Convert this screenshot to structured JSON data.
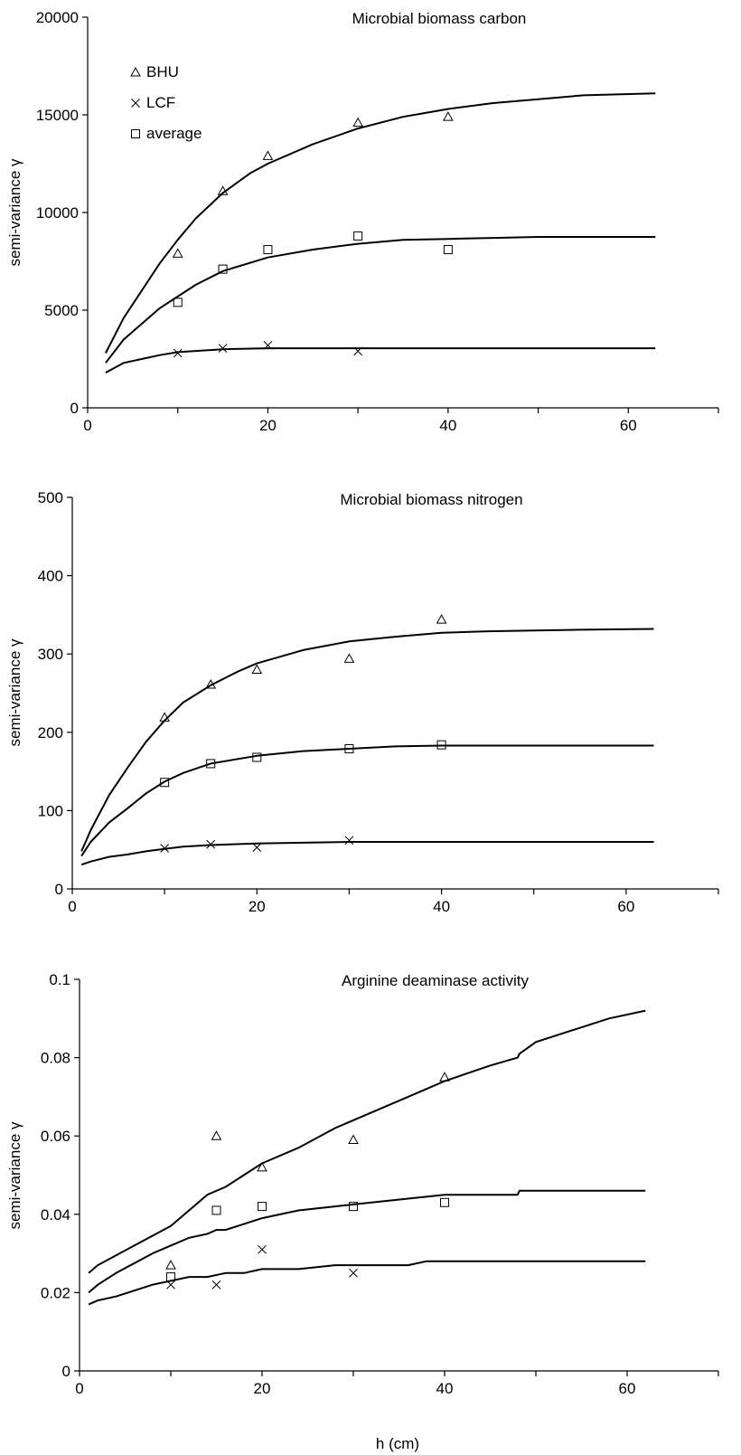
{
  "figure": {
    "xlabel": "h (cm)"
  },
  "chart_data": [
    {
      "type": "scatter",
      "title": "Microbial biomass carbon",
      "xlabel": "",
      "ylabel": "semi-variance γ",
      "xlim": [
        0,
        70
      ],
      "ylim": [
        0,
        20000
      ],
      "xticks": [
        "0",
        "20",
        "40",
        "60"
      ],
      "yticks": [
        "0",
        "5000",
        "10000",
        "15000",
        "20000"
      ],
      "legend": {
        "placement": "top-left",
        "entries": [
          "BHU",
          "LCF",
          "average"
        ]
      },
      "series": [
        {
          "name": "BHU",
          "marker": "triangle",
          "points": [
            [
              10,
              7900
            ],
            [
              15,
              11100
            ],
            [
              20,
              12900
            ],
            [
              30,
              14600
            ],
            [
              40,
              14900
            ]
          ],
          "fit": [
            [
              2,
              2800
            ],
            [
              4,
              4600
            ],
            [
              6,
              6000
            ],
            [
              8,
              7400
            ],
            [
              10,
              8600
            ],
            [
              12,
              9700
            ],
            [
              15,
              11000
            ],
            [
              18,
              12000
            ],
            [
              20,
              12500
            ],
            [
              25,
              13500
            ],
            [
              30,
              14300
            ],
            [
              35,
              14900
            ],
            [
              40,
              15300
            ],
            [
              45,
              15600
            ],
            [
              50,
              15800
            ],
            [
              55,
              16000
            ],
            [
              63,
              16100
            ]
          ]
        },
        {
          "name": "LCF",
          "marker": "cross",
          "points": [
            [
              10,
              2800
            ],
            [
              15,
              3050
            ],
            [
              20,
              3200
            ],
            [
              30,
              2900
            ]
          ],
          "fit": [
            [
              2,
              1800
            ],
            [
              4,
              2300
            ],
            [
              6,
              2500
            ],
            [
              8,
              2700
            ],
            [
              10,
              2850
            ],
            [
              15,
              3000
            ],
            [
              20,
              3050
            ],
            [
              24,
              3050
            ],
            [
              30,
              3050
            ],
            [
              40,
              3050
            ],
            [
              63,
              3050
            ]
          ]
        },
        {
          "name": "average",
          "marker": "square",
          "points": [
            [
              10,
              5400
            ],
            [
              15,
              7100
            ],
            [
              20,
              8100
            ],
            [
              30,
              8800
            ],
            [
              40,
              8100
            ]
          ],
          "fit": [
            [
              2,
              2300
            ],
            [
              4,
              3500
            ],
            [
              6,
              4300
            ],
            [
              8,
              5100
            ],
            [
              10,
              5700
            ],
            [
              12,
              6300
            ],
            [
              15,
              7000
            ],
            [
              20,
              7700
            ],
            [
              25,
              8100
            ],
            [
              30,
              8400
            ],
            [
              35,
              8600
            ],
            [
              40,
              8650
            ],
            [
              45,
              8700
            ],
            [
              50,
              8750
            ],
            [
              63,
              8750
            ]
          ]
        }
      ]
    },
    {
      "type": "scatter",
      "title": "Microbial biomass nitrogen",
      "xlabel": "",
      "ylabel": "semi-variance γ",
      "xlim": [
        0,
        70
      ],
      "ylim": [
        0,
        500
      ],
      "xticks": [
        "0",
        "20",
        "40",
        "60"
      ],
      "yticks": [
        "0",
        "100",
        "200",
        "300",
        "400",
        "500"
      ],
      "series": [
        {
          "name": "BHU",
          "marker": "triangle",
          "points": [
            [
              10,
              219
            ],
            [
              15,
              261
            ],
            [
              20,
              280
            ],
            [
              30,
              294
            ],
            [
              40,
              344
            ]
          ],
          "fit": [
            [
              1,
              48
            ],
            [
              2,
              75
            ],
            [
              4,
              120
            ],
            [
              6,
              155
            ],
            [
              8,
              188
            ],
            [
              10,
              215
            ],
            [
              12,
              238
            ],
            [
              15,
              260
            ],
            [
              18,
              278
            ],
            [
              20,
              288
            ],
            [
              25,
              305
            ],
            [
              30,
              316
            ],
            [
              35,
              322
            ],
            [
              40,
              327
            ],
            [
              45,
              329
            ],
            [
              50,
              330
            ],
            [
              55,
              331
            ],
            [
              63,
              332
            ]
          ]
        },
        {
          "name": "LCF",
          "marker": "cross",
          "points": [
            [
              10,
              52
            ],
            [
              15,
              57
            ],
            [
              20,
              53
            ],
            [
              30,
              62
            ]
          ],
          "fit": [
            [
              1,
              31
            ],
            [
              2,
              35
            ],
            [
              4,
              41
            ],
            [
              6,
              44
            ],
            [
              8,
              48
            ],
            [
              10,
              51
            ],
            [
              12,
              54
            ],
            [
              15,
              56
            ],
            [
              20,
              58
            ],
            [
              25,
              59
            ],
            [
              30,
              60
            ],
            [
              40,
              60
            ],
            [
              63,
              60
            ]
          ]
        },
        {
          "name": "average",
          "marker": "square",
          "points": [
            [
              10,
              136
            ],
            [
              15,
              160
            ],
            [
              20,
              168
            ],
            [
              30,
              179
            ],
            [
              40,
              184
            ]
          ],
          "fit": [
            [
              1,
              42
            ],
            [
              2,
              60
            ],
            [
              4,
              85
            ],
            [
              6,
              103
            ],
            [
              8,
              122
            ],
            [
              10,
              137
            ],
            [
              12,
              148
            ],
            [
              15,
              160
            ],
            [
              20,
              170
            ],
            [
              25,
              176
            ],
            [
              30,
              179
            ],
            [
              35,
              182
            ],
            [
              40,
              183
            ],
            [
              50,
              183
            ],
            [
              63,
              183
            ]
          ]
        }
      ]
    },
    {
      "type": "scatter",
      "title": "Arginine deaminase activity",
      "xlabel": "h (cm)",
      "ylabel": "semi-variance γ",
      "xlim": [
        0,
        70
      ],
      "ylim": [
        0,
        0.1
      ],
      "xticks": [
        "0",
        "20",
        "40",
        "60"
      ],
      "yticks": [
        "0",
        "0.02",
        "0.04",
        "0.06",
        "0.08",
        "0.1"
      ],
      "series": [
        {
          "name": "BHU",
          "marker": "triangle",
          "points": [
            [
              10,
              0.027
            ],
            [
              15,
              0.06
            ],
            [
              20,
              0.052
            ],
            [
              30,
              0.059
            ],
            [
              40,
              0.075
            ]
          ],
          "fit": [
            [
              1,
              0.025
            ],
            [
              2,
              0.027
            ],
            [
              6,
              0.032
            ],
            [
              10,
              0.037
            ],
            [
              14,
              0.045
            ],
            [
              16,
              0.047
            ],
            [
              18,
              0.05
            ],
            [
              20,
              0.053
            ],
            [
              24,
              0.057
            ],
            [
              28,
              0.062
            ],
            [
              32,
              0.066
            ],
            [
              36,
              0.07
            ],
            [
              40,
              0.074
            ],
            [
              45,
              0.078
            ],
            [
              48,
              0.08
            ],
            [
              48.2,
              0.081
            ],
            [
              50,
              0.084
            ],
            [
              58,
              0.09
            ],
            [
              62,
              0.092
            ]
          ]
        },
        {
          "name": "LCF",
          "marker": "cross",
          "points": [
            [
              10,
              0.022
            ],
            [
              15,
              0.022
            ],
            [
              20,
              0.031
            ],
            [
              30,
              0.025
            ]
          ],
          "fit": [
            [
              1,
              0.017
            ],
            [
              2,
              0.018
            ],
            [
              4,
              0.019
            ],
            [
              8,
              0.022
            ],
            [
              12,
              0.024
            ],
            [
              14,
              0.024
            ],
            [
              16,
              0.025
            ],
            [
              18,
              0.025
            ],
            [
              20,
              0.026
            ],
            [
              24,
              0.026
            ],
            [
              28,
              0.027
            ],
            [
              30,
              0.027
            ],
            [
              36,
              0.027
            ],
            [
              38,
              0.028
            ],
            [
              62,
              0.028
            ]
          ]
        },
        {
          "name": "average",
          "marker": "square",
          "points": [
            [
              10,
              0.024
            ],
            [
              15,
              0.041
            ],
            [
              20,
              0.042
            ],
            [
              30,
              0.042
            ],
            [
              40,
              0.043
            ]
          ],
          "fit": [
            [
              1,
              0.02
            ],
            [
              2,
              0.022
            ],
            [
              4,
              0.025
            ],
            [
              8,
              0.03
            ],
            [
              12,
              0.034
            ],
            [
              14,
              0.035
            ],
            [
              15,
              0.036
            ],
            [
              16,
              0.036
            ],
            [
              20,
              0.039
            ],
            [
              24,
              0.041
            ],
            [
              28,
              0.042
            ],
            [
              32,
              0.043
            ],
            [
              36,
              0.044
            ],
            [
              40,
              0.045
            ],
            [
              44,
              0.045
            ],
            [
              48,
              0.045
            ],
            [
              48.2,
              0.046
            ],
            [
              62,
              0.046
            ]
          ]
        }
      ]
    }
  ]
}
